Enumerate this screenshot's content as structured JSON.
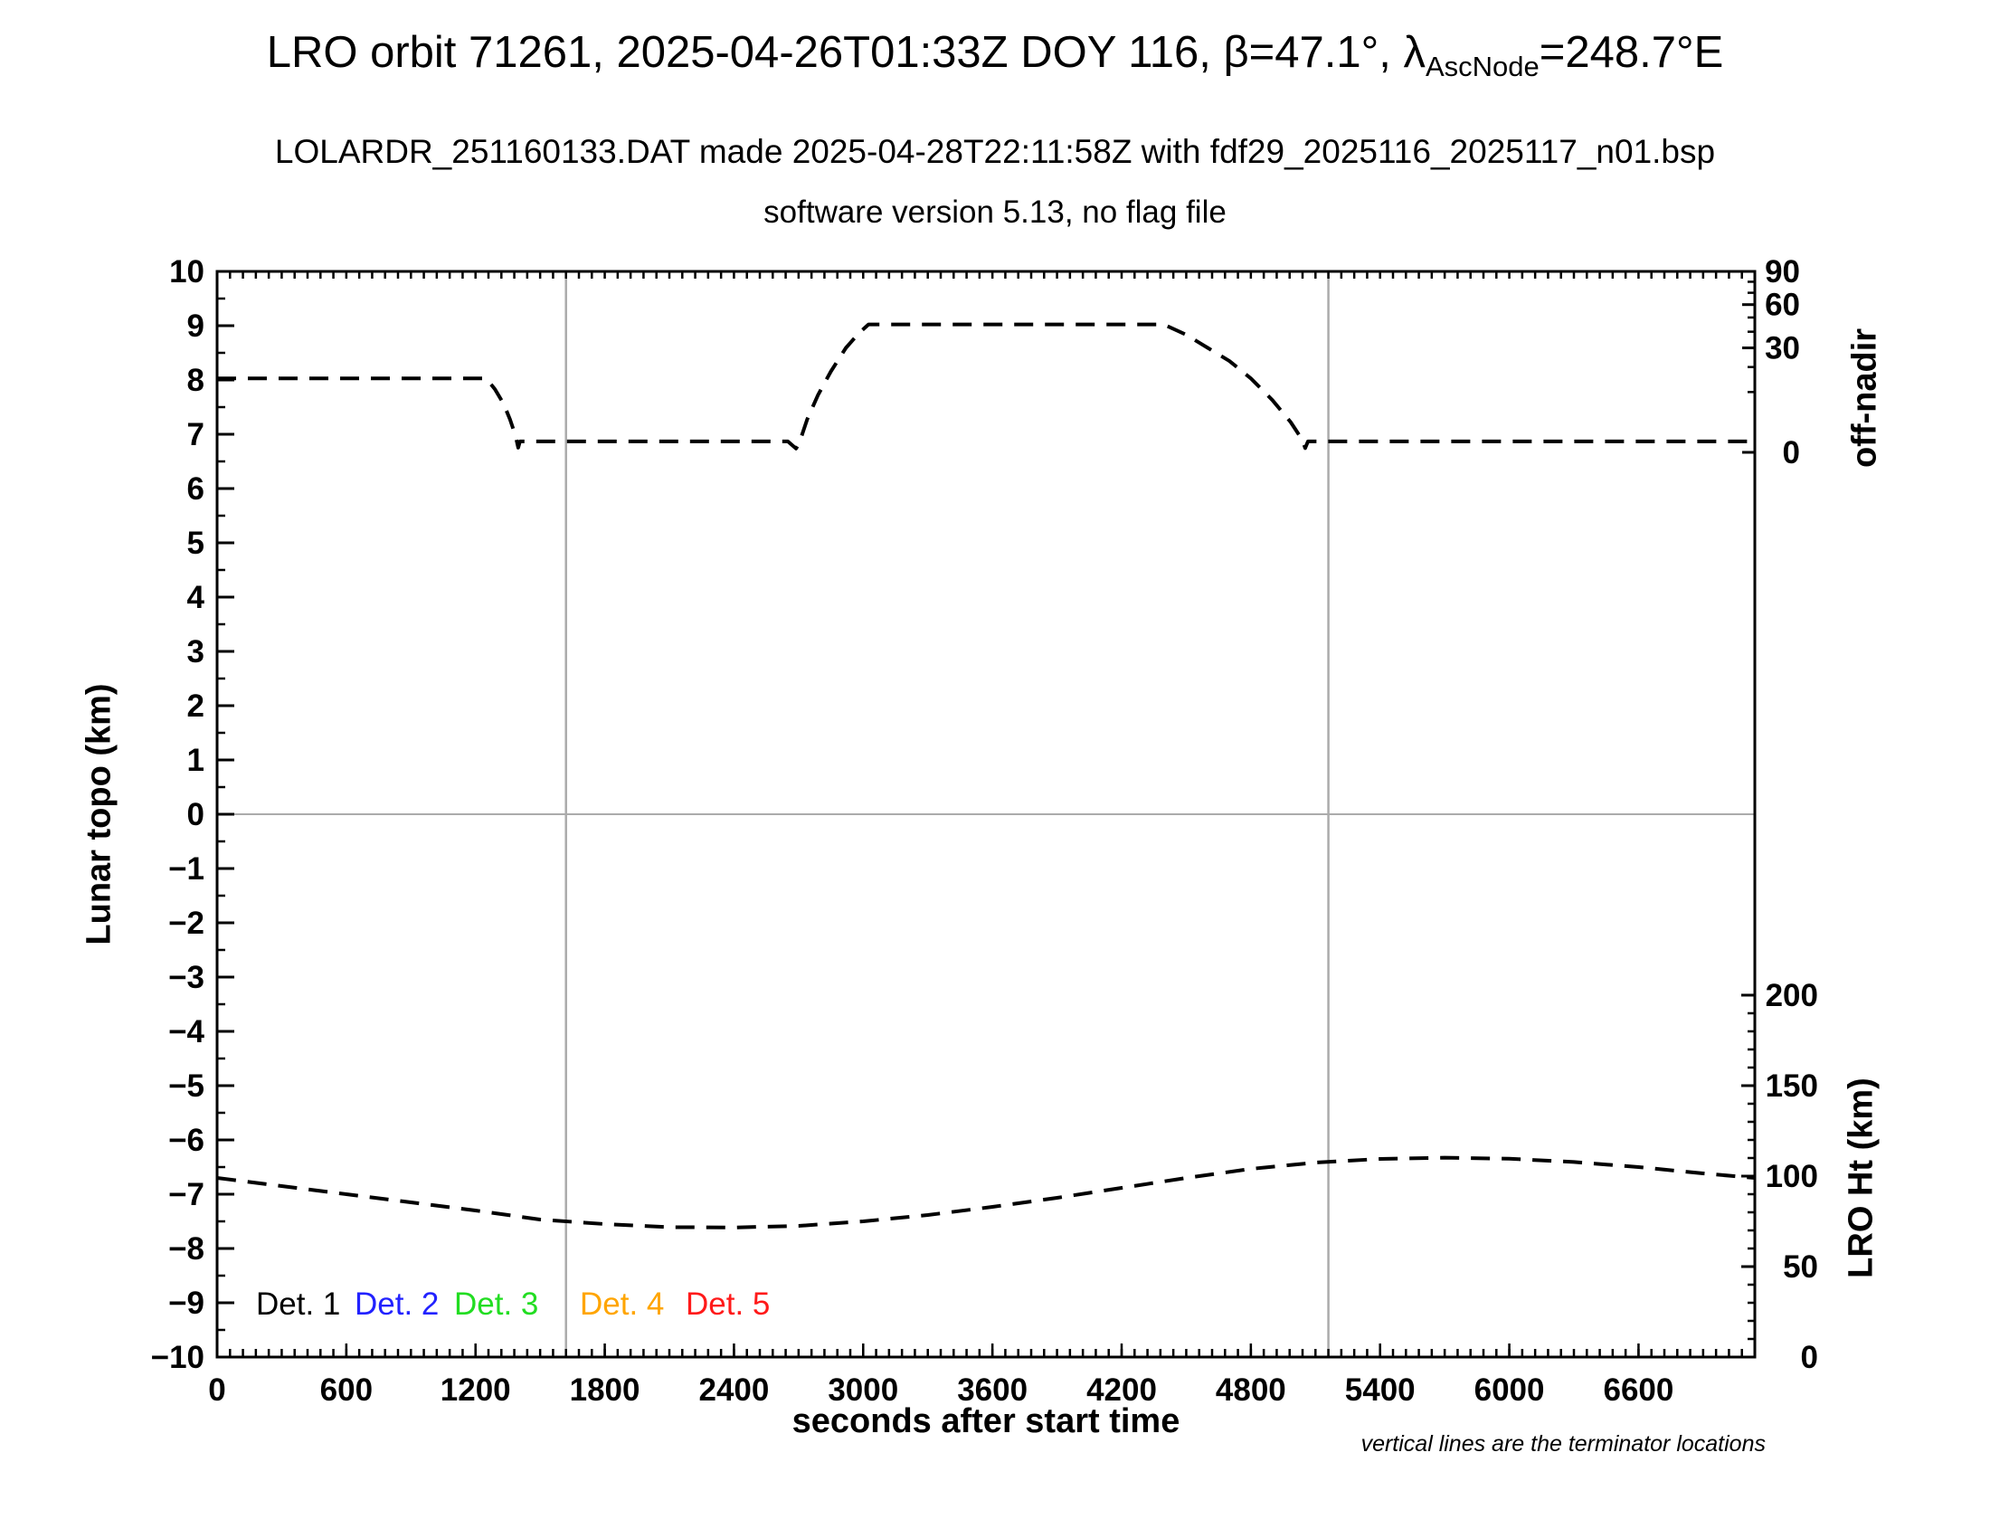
{
  "title": {
    "prefix": "LRO orbit 71261, 2025-04-26T01:33Z DOY 116, β=47.1°, λ",
    "subscript": "AscNode",
    "suffix": "=248.7°E"
  },
  "subtitle": "LOLARDR_251160133.DAT made 2025-04-28T22:11:58Z with fdf29_2025116_2025117_n01.bsp",
  "software_line": "software version 5.13, no flag file",
  "footnote": "vertical lines are the terminator locations",
  "legend": [
    {
      "label": "Det. 1",
      "color": "#000000"
    },
    {
      "label": "Det. 2",
      "color": "#2222ff"
    },
    {
      "label": "Det. 3",
      "color": "#22dd22"
    },
    {
      "label": "Det. 4",
      "color": "#ffa500"
    },
    {
      "label": "Det. 5",
      "color": "#ff1a1a"
    }
  ],
  "colors": {
    "curve": "#000000",
    "frame": "#000000",
    "guide_gray": "#ababab",
    "background": "#ffffff"
  },
  "chart_data": {
    "type": "line",
    "title": "LRO orbit 71261, 2025-04-26T01:33Z DOY 116, β=47.1°, λAscNode=248.7°E",
    "x_axis": {
      "label": "seconds after start time",
      "min": 0,
      "max": 7140,
      "major_tick_values": [
        0,
        600,
        1200,
        1800,
        2400,
        3000,
        3600,
        4200,
        4800,
        5400,
        6000,
        6600
      ],
      "minor_tick_step": 60
    },
    "y_left": {
      "label": "Lunar topo (km)",
      "min": -10,
      "max": 10,
      "major_tick_step": 1,
      "minor_tick_step": 0.5
    },
    "y_right_top": {
      "label": "off-nadir",
      "scale": "sqrt",
      "max_deg": 90,
      "major_tick_deg": [
        90,
        60,
        30,
        0
      ],
      "minor_tick_deg": [
        80,
        70,
        50,
        40,
        20,
        10
      ],
      "deg0_at_left_value": 6.667,
      "deg90_at_left_value": 10
    },
    "y_right_bottom": {
      "label": "LRO Ht (km)",
      "major_tick_km": [
        200,
        150,
        100,
        50,
        0
      ],
      "minor_tick_step_km": 10,
      "km0_at_left_value": -10,
      "km200_at_left_value": -3.333
    },
    "zero_line_left_value": 0,
    "terminator_lines_seconds": [
      1620,
      5160
    ],
    "series": [
      {
        "name": "off-nadir angle",
        "axis": "right_top",
        "units": "deg",
        "style": "dashed",
        "color": "#000000",
        "points": [
          [
            0,
            15
          ],
          [
            1250,
            15
          ],
          [
            1290,
            11
          ],
          [
            1330,
            6.5
          ],
          [
            1360,
            3
          ],
          [
            1385,
            0.8
          ],
          [
            1398,
            0.06
          ],
          [
            1406,
            0.33
          ],
          [
            2650,
            0.33
          ],
          [
            2688,
            0.04
          ],
          [
            2702,
            0.2
          ],
          [
            2740,
            3
          ],
          [
            2790,
            9
          ],
          [
            2850,
            18
          ],
          [
            2920,
            30
          ],
          [
            2980,
            39
          ],
          [
            3025,
            45
          ],
          [
            4395,
            45
          ],
          [
            4500,
            38
          ],
          [
            4600,
            30
          ],
          [
            4700,
            23
          ],
          [
            4800,
            15
          ],
          [
            4900,
            7.5
          ],
          [
            4985,
            2.5
          ],
          [
            5040,
            0.4
          ],
          [
            5052,
            0.05
          ],
          [
            5065,
            0.33
          ],
          [
            7140,
            0.33
          ]
        ]
      },
      {
        "name": "LRO height",
        "axis": "right_bottom",
        "units": "km",
        "style": "dashed",
        "color": "#000000",
        "points": [
          [
            0,
            99
          ],
          [
            300,
            94.5
          ],
          [
            600,
            90
          ],
          [
            900,
            85.5
          ],
          [
            1200,
            81
          ],
          [
            1500,
            76
          ],
          [
            1800,
            73.5
          ],
          [
            2100,
            71.8
          ],
          [
            2400,
            71.6
          ],
          [
            2700,
            72.5
          ],
          [
            3000,
            75
          ],
          [
            3300,
            78.5
          ],
          [
            3600,
            83
          ],
          [
            3900,
            88
          ],
          [
            4200,
            93.5
          ],
          [
            4500,
            99
          ],
          [
            4800,
            104
          ],
          [
            5100,
            107.5
          ],
          [
            5400,
            109.5
          ],
          [
            5700,
            110.2
          ],
          [
            6000,
            109.6
          ],
          [
            6300,
            107.8
          ],
          [
            6600,
            105
          ],
          [
            6900,
            101.5
          ],
          [
            7140,
            99
          ]
        ]
      }
    ]
  }
}
